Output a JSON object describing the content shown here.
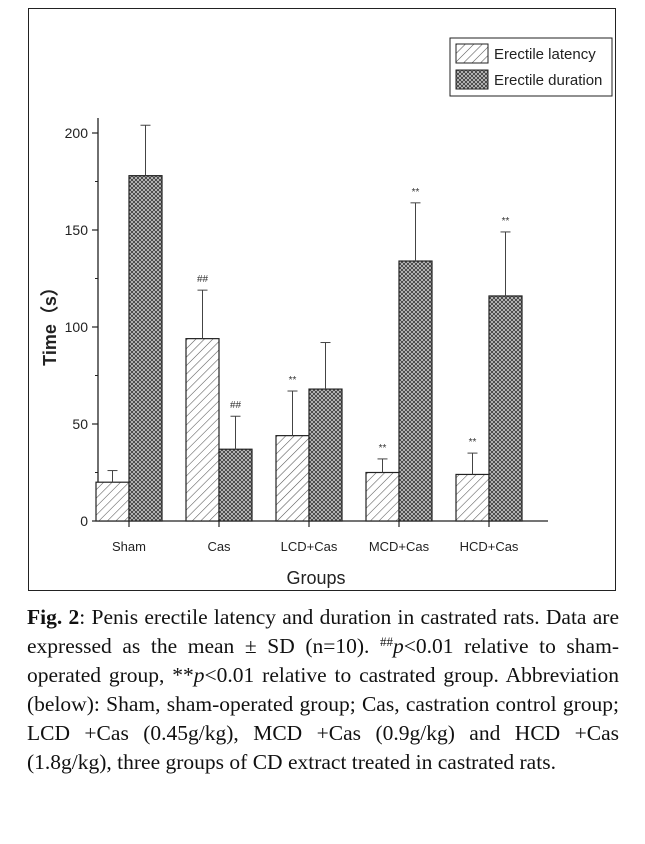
{
  "chart_data": {
    "type": "bar",
    "categories": [
      "Sham",
      "Cas",
      "LCD+Cas",
      "MCD+Cas",
      "HCD+Cas"
    ],
    "series": [
      {
        "name": "Erectile latency",
        "pattern": "diagonal-hatch",
        "values": [
          20,
          94,
          44,
          25,
          24
        ],
        "error": [
          6,
          25,
          23,
          7,
          11
        ],
        "annotations": [
          "",
          "##",
          "**",
          "**",
          "**"
        ]
      },
      {
        "name": "Erectile duration",
        "pattern": "crosshatch",
        "values": [
          178,
          37,
          68,
          134,
          116
        ],
        "error": [
          26,
          17,
          24,
          30,
          33
        ],
        "annotations": [
          "",
          "##",
          "",
          "**",
          "**"
        ]
      }
    ],
    "xlabel": "Groups",
    "ylabel": "Time（s）",
    "ylim": [
      0,
      220
    ],
    "yticks": [
      0,
      50,
      100,
      150,
      200
    ],
    "legend_position": "top-right",
    "grid": false
  },
  "caption": {
    "fig_label": "Fig. 2",
    "sentence1": ": Penis erectile latency and duration in castrated rats. Data are expressed as the mean ± SD (n=10). ",
    "sig1_mark": "##",
    "sig1_p": "p",
    "sig1_text": "<0.01 relative to sham-operated group, **",
    "sig2_p": "p",
    "sig2_text": "<0.01 relative to castrated group. Abbreviation (below): Sham, sham-operated group; Cas, castration control group; LCD +Cas (0.45g/kg), MCD +Cas (0.9g/kg) and HCD +Cas (1.8g/kg), three groups of CD extract treated in castrated rats."
  }
}
